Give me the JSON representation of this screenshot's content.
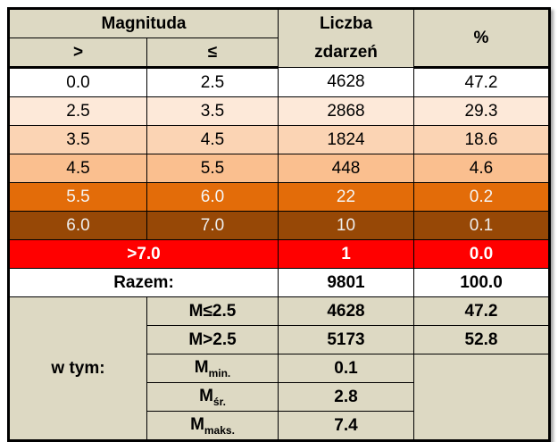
{
  "header": {
    "magnituda": "Magnituda",
    "gt": ">",
    "le": "≤",
    "count": "Liczba zdarzeń",
    "percent": "%"
  },
  "rows": [
    [
      "0.0",
      "2.5",
      "4628",
      "47.2"
    ],
    [
      "2.5",
      "3.5",
      "2868",
      "29.3"
    ],
    [
      "3.5",
      "4.5",
      "1824",
      "18.6"
    ],
    [
      "4.5",
      "5.5",
      "448",
      "4.6"
    ],
    [
      "5.5",
      "6.0",
      "22",
      "0.2"
    ],
    [
      "6.0",
      "7.0",
      "10",
      "0.1"
    ]
  ],
  "above": {
    "label": ">7.0",
    "count": "1",
    "percent": "0.0"
  },
  "total": {
    "label": "Razem:",
    "count": "9801",
    "percent": "100.0"
  },
  "breakdown": {
    "label": "w tym:",
    "items": [
      {
        "label": "M≤2.5",
        "count": "4628",
        "percent": "47.2"
      },
      {
        "label": "M>2.5",
        "count": "5173",
        "percent": "52.8"
      }
    ],
    "stats": [
      {
        "base": "M",
        "sub": "min.",
        "value": "0.1"
      },
      {
        "base": "M",
        "sub": "śr.",
        "value": "2.8"
      },
      {
        "base": "M",
        "sub": "maks.",
        "value": "7.4"
      }
    ]
  }
}
